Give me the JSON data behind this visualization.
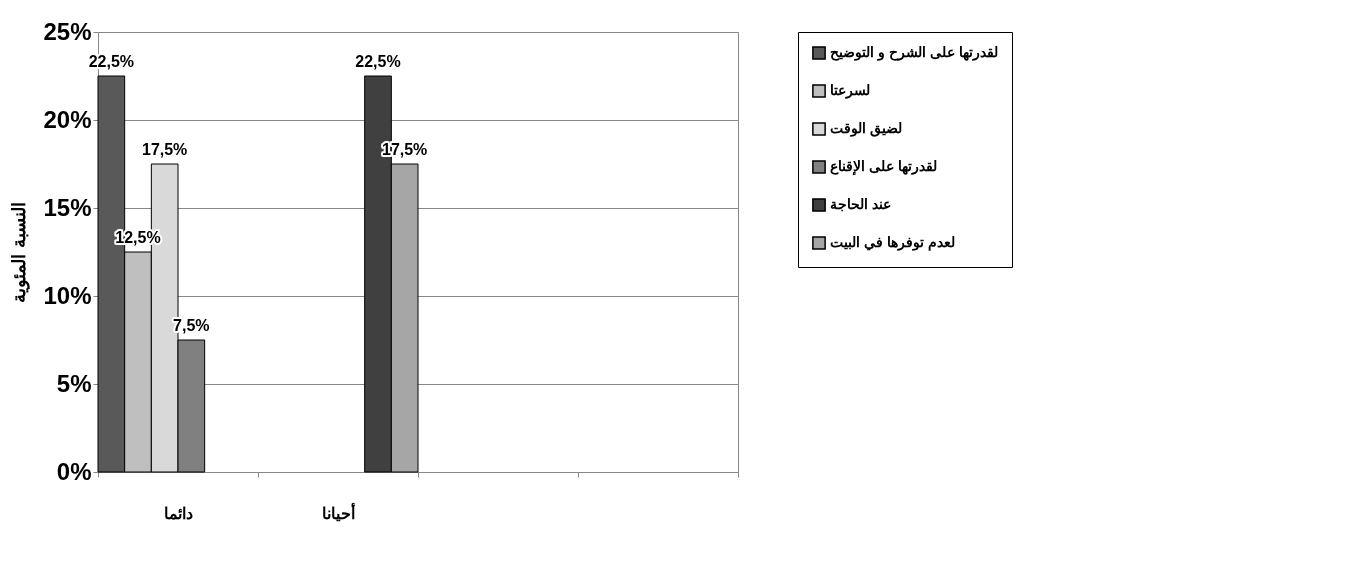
{
  "chart_data": {
    "type": "bar",
    "ylabel": "النسبة المئوية",
    "categories": [
      "دائما",
      "أحيانا",
      null,
      null
    ],
    "series": [
      {
        "name": "لقدرتها على الشرح و التوضيح",
        "color": "#595959",
        "values": [
          22.5,
          null,
          null,
          null
        ],
        "value_labels": [
          "22,5%",
          null,
          null,
          null
        ]
      },
      {
        "name": "لسرعتا",
        "color": "#bfbfbf",
        "values": [
          12.5,
          null,
          null,
          null
        ],
        "value_labels": [
          "12,5%",
          null,
          null,
          null
        ]
      },
      {
        "name": "لضيق الوقت",
        "color": "#d9d9d9",
        "values": [
          17.5,
          null,
          null,
          null
        ],
        "value_labels": [
          "17,5%",
          null,
          null,
          null
        ]
      },
      {
        "name": "لقدرتها على الإقناع",
        "color": "#808080",
        "values": [
          7.5,
          null,
          null,
          null
        ],
        "value_labels": [
          "7,5%",
          null,
          null,
          null
        ]
      },
      {
        "name": "عند الحاجة",
        "color": "#404040",
        "values": [
          null,
          22.5,
          null,
          null
        ],
        "value_labels": [
          null,
          "22,5%",
          null,
          null
        ]
      },
      {
        "name": "لعدم توفرها في البيت",
        "color": "#a6a6a6",
        "values": [
          null,
          17.5,
          null,
          null
        ],
        "value_labels": [
          null,
          "17,5%",
          null,
          null
        ]
      }
    ],
    "ylim": [
      0,
      25
    ],
    "yticks": [
      {
        "value": 0,
        "label": "0%"
      },
      {
        "value": 5,
        "label": "5%"
      },
      {
        "value": 10,
        "label": "10%"
      },
      {
        "value": 15,
        "label": "15%"
      },
      {
        "value": 20,
        "label": "20%"
      },
      {
        "value": 25,
        "label": "25%"
      }
    ],
    "grid": "y",
    "legend": "right"
  }
}
